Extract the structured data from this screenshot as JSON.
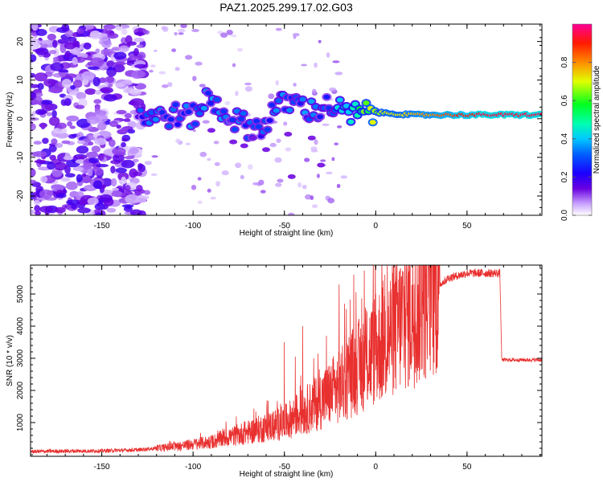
{
  "title": "PAZ1.2025.299.17.02.G03",
  "chart_data": [
    {
      "type": "heatmap",
      "xlabel": "Height of straight line (km)",
      "ylabel": "Frequency (Hz)",
      "xlim": [
        -189,
        91
      ],
      "ylim": [
        -25,
        24.5
      ],
      "xticks": [
        -150,
        -100,
        -50,
        0,
        50
      ],
      "xtick_labels": [
        "-150",
        "-100",
        "-50",
        "0",
        "50"
      ],
      "yticks": [
        20,
        10,
        0,
        -10,
        -20
      ],
      "ytick_labels": [
        "20",
        "10",
        "0",
        "-10",
        "-20"
      ],
      "colorbar": {
        "label": "Normalized spectral amplitude",
        "range": [
          0,
          1
        ],
        "ticks": [
          0.0,
          0.2,
          0.4,
          0.6,
          0.8
        ],
        "tick_labels": [
          "0.0",
          "0.2",
          "0.4",
          "0.6",
          "0.8"
        ],
        "colors": [
          "#ffffff",
          "#b266ff",
          "#5b00e6",
          "#0000ff",
          "#00bfff",
          "#00ff9f",
          "#00ff00",
          "#ffff00",
          "#ff8000",
          "#ff0000",
          "#ff00a0"
        ]
      },
      "ridge": [
        {
          "x": -128,
          "freq": 1.0,
          "amp": 0.25
        },
        {
          "x": -120,
          "freq": 0.5,
          "amp": 0.3
        },
        {
          "x": -110,
          "freq": 1.0,
          "amp": 0.28
        },
        {
          "x": -100,
          "freq": 0.5,
          "amp": 0.3
        },
        {
          "x": -92,
          "freq": 5.5,
          "amp": 0.32
        },
        {
          "x": -85,
          "freq": 2.5,
          "amp": 0.3
        },
        {
          "x": -78,
          "freq": 0.0,
          "amp": 0.28
        },
        {
          "x": -70,
          "freq": -2.0,
          "amp": 0.27
        },
        {
          "x": -62,
          "freq": -2.5,
          "amp": 0.26
        },
        {
          "x": -55,
          "freq": 3.0,
          "amp": 0.3
        },
        {
          "x": -45,
          "freq": 4.5,
          "amp": 0.32
        },
        {
          "x": -35,
          "freq": 2.0,
          "amp": 0.3
        },
        {
          "x": -25,
          "freq": 3.5,
          "amp": 0.3
        },
        {
          "x": -15,
          "freq": 1.0,
          "amp": 0.45
        },
        {
          "x": -5,
          "freq": 1.5,
          "amp": 0.6
        },
        {
          "x": 5,
          "freq": 1.5,
          "amp": 0.7
        },
        {
          "x": 20,
          "freq": 1.0,
          "amp": 0.75
        },
        {
          "x": 40,
          "freq": 1.0,
          "amp": 0.85
        },
        {
          "x": 60,
          "freq": 1.0,
          "amp": 0.95
        },
        {
          "x": 90,
          "freq": 1.0,
          "amp": 0.95
        }
      ]
    },
    {
      "type": "line",
      "xlabel": "Height of straight line (km)",
      "ylabel": "SNR (10 * v/v)",
      "xlim": [
        -189,
        91
      ],
      "ylim": [
        -50,
        5900
      ],
      "xticks": [
        -150,
        -100,
        -50,
        0,
        50
      ],
      "xtick_labels": [
        "-150",
        "-100",
        "-50",
        "0",
        "50"
      ],
      "yticks": [
        1000,
        2000,
        3000,
        4000,
        5000
      ],
      "ytick_labels": [
        "1000",
        "2000",
        "3000",
        "4000",
        "5000"
      ],
      "color": "#e8302f",
      "envelope": [
        {
          "x": -189,
          "snr": 100
        },
        {
          "x": -150,
          "snr": 120
        },
        {
          "x": -130,
          "snr": 150
        },
        {
          "x": -110,
          "snr": 250
        },
        {
          "x": -90,
          "snr": 400
        },
        {
          "x": -70,
          "snr": 700
        },
        {
          "x": -50,
          "snr": 1000
        },
        {
          "x": -35,
          "snr": 1500
        },
        {
          "x": -20,
          "snr": 2100
        },
        {
          "x": -10,
          "snr": 2700
        },
        {
          "x": 0,
          "snr": 3300
        },
        {
          "x": 10,
          "snr": 3900
        },
        {
          "x": 20,
          "snr": 4500
        },
        {
          "x": 30,
          "snr": 5100
        },
        {
          "x": 40,
          "snr": 5500
        },
        {
          "x": 50,
          "snr": 5650
        },
        {
          "x": 60,
          "snr": 5650
        },
        {
          "x": 68,
          "snr": 5650
        },
        {
          "x": 69,
          "snr": 2950
        },
        {
          "x": 91,
          "snr": 2950
        }
      ],
      "spikes": [
        {
          "x": -50,
          "snr": 3500
        },
        {
          "x": -44,
          "snr": 3050
        },
        {
          "x": -40,
          "snr": 4000
        },
        {
          "x": -34,
          "snr": 3000
        },
        {
          "x": -27,
          "snr": 3700
        },
        {
          "x": -20,
          "snr": 5300
        },
        {
          "x": -17,
          "snr": 4700
        },
        {
          "x": -12,
          "snr": 5600
        },
        {
          "x": -5,
          "snr": 4500
        },
        {
          "x": 0,
          "snr": 5000
        },
        {
          "x": 5,
          "snr": 5600
        },
        {
          "x": 15,
          "snr": 5700
        },
        {
          "x": 35,
          "snr": 5900
        }
      ]
    }
  ]
}
